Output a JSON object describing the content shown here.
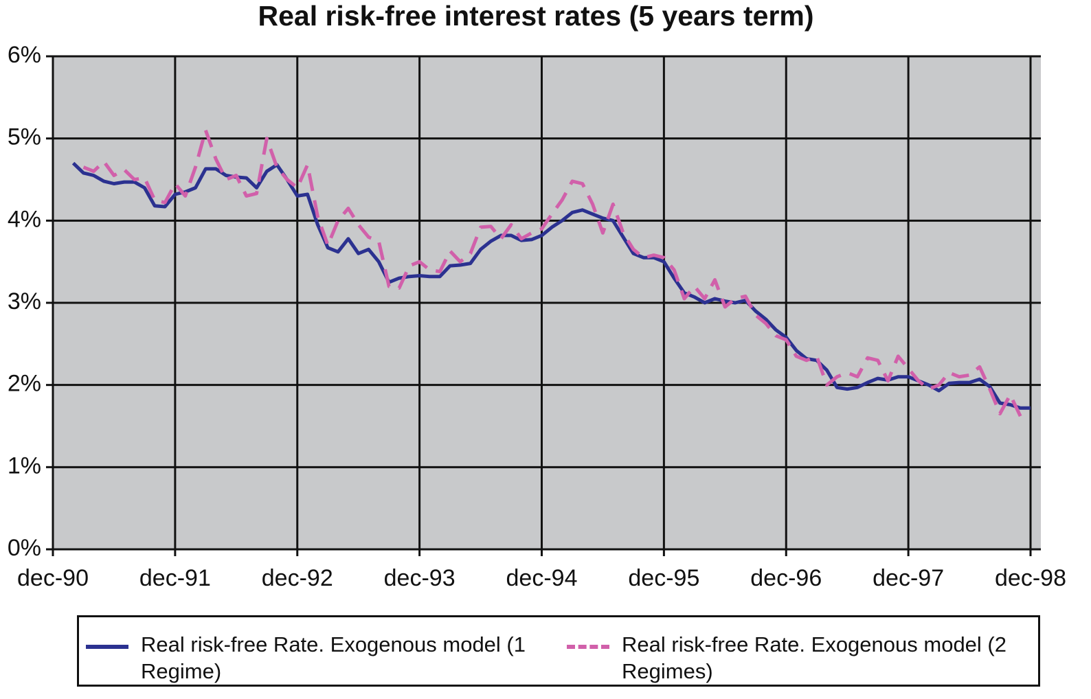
{
  "chart_data": {
    "type": "line",
    "title": "Real risk-free interest rates (5 years term)",
    "categories": [
      "dec-90",
      null,
      null,
      null,
      null,
      null,
      null,
      null,
      null,
      null,
      null,
      null,
      "dec-91",
      null,
      null,
      null,
      null,
      null,
      null,
      null,
      null,
      null,
      null,
      null,
      "dec-92",
      null,
      null,
      null,
      null,
      null,
      null,
      null,
      null,
      null,
      null,
      null,
      "dec-93",
      null,
      null,
      null,
      null,
      null,
      null,
      null,
      null,
      null,
      null,
      null,
      "dec-94",
      null,
      null,
      null,
      null,
      null,
      null,
      null,
      null,
      null,
      null,
      null,
      "dec-95",
      null,
      null,
      null,
      null,
      null,
      null,
      null,
      null,
      null,
      null,
      null,
      "dec-96",
      null,
      null,
      null,
      null,
      null,
      null,
      null,
      null,
      null,
      null,
      null,
      "dec-97",
      null,
      null,
      null,
      null,
      null,
      null,
      null,
      null,
      null,
      null,
      null,
      "dec-98"
    ],
    "series": [
      {
        "name": "Real risk-free Rate. Exogenous model (1 Regime)",
        "color": "#2b3190",
        "dashed": false,
        "values": [
          null,
          null,
          4.7,
          4.58,
          4.55,
          4.48,
          4.45,
          4.47,
          4.47,
          4.4,
          4.18,
          4.17,
          4.32,
          4.35,
          4.4,
          4.63,
          4.63,
          4.55,
          4.53,
          4.52,
          4.4,
          4.6,
          4.68,
          4.5,
          4.3,
          4.32,
          3.95,
          3.67,
          3.62,
          3.78,
          3.6,
          3.65,
          3.5,
          3.25,
          3.3,
          3.32,
          3.33,
          3.32,
          3.32,
          3.45,
          3.46,
          3.48,
          3.65,
          3.75,
          3.82,
          3.82,
          3.76,
          3.77,
          3.82,
          3.92,
          4.0,
          4.1,
          4.13,
          4.08,
          4.03,
          4.0,
          3.8,
          3.6,
          3.55,
          3.55,
          3.5,
          3.3,
          3.12,
          3.07,
          3.0,
          3.05,
          3.02,
          3.0,
          3.03,
          2.9,
          2.8,
          2.67,
          2.58,
          2.42,
          2.32,
          2.3,
          2.18,
          1.97,
          1.95,
          1.97,
          2.03,
          2.08,
          2.06,
          2.1,
          2.1,
          2.05,
          2.0,
          1.93,
          2.02,
          2.03,
          2.03,
          2.07,
          1.98,
          1.78,
          1.76,
          1.72,
          1.72
        ]
      },
      {
        "name": "Real risk-free Rate. Exogenous model (2 Regimes)",
        "color": "#d160aa",
        "dashed": true,
        "values": [
          null,
          null,
          null,
          4.65,
          4.6,
          4.72,
          4.55,
          4.62,
          4.5,
          4.52,
          4.25,
          4.22,
          4.45,
          4.3,
          4.65,
          5.1,
          4.75,
          4.5,
          4.55,
          4.3,
          4.33,
          5.0,
          4.65,
          4.5,
          4.4,
          4.68,
          4.05,
          3.7,
          4.0,
          4.15,
          3.95,
          3.8,
          3.75,
          3.2,
          3.18,
          3.45,
          3.5,
          3.4,
          3.38,
          3.63,
          3.5,
          3.6,
          3.92,
          3.93,
          3.78,
          3.95,
          3.78,
          3.85,
          3.9,
          4.08,
          4.25,
          4.48,
          4.45,
          4.2,
          3.85,
          4.2,
          3.85,
          3.65,
          3.55,
          3.58,
          3.55,
          3.4,
          3.05,
          3.2,
          3.05,
          3.28,
          2.95,
          3.05,
          3.08,
          2.85,
          2.75,
          2.6,
          2.55,
          2.35,
          2.3,
          2.35,
          2.0,
          2.1,
          2.15,
          2.1,
          2.33,
          2.3,
          2.05,
          2.35,
          2.2,
          2.05,
          1.95,
          2.0,
          2.15,
          2.1,
          2.12,
          2.22,
          1.95,
          1.65,
          1.88,
          1.62,
          null
        ]
      }
    ],
    "ylim": [
      0,
      6
    ],
    "yticks": [
      {
        "value": 0,
        "label": "0%"
      },
      {
        "value": 1,
        "label": "1%"
      },
      {
        "value": 2,
        "label": "2%"
      },
      {
        "value": 3,
        "label": "3%"
      },
      {
        "value": 4,
        "label": "4%"
      },
      {
        "value": 5,
        "label": "5%"
      },
      {
        "value": 6,
        "label": "6%"
      }
    ],
    "grid": true,
    "background": "#c8c9cb"
  }
}
